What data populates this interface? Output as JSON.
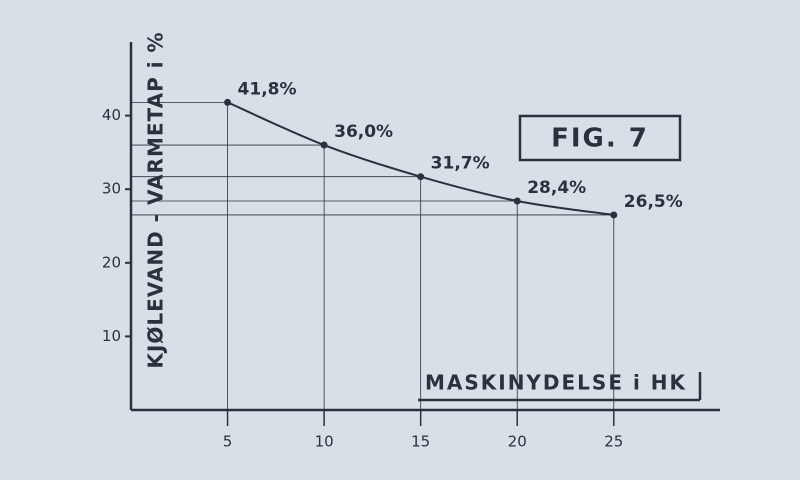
{
  "chart_data": {
    "type": "line",
    "title": "FIG. 7",
    "y_label": "KJØLEVAND - VARMETAP i %",
    "x_label": "MASKINYDELSE i HK",
    "x": [
      5,
      10,
      15,
      20,
      25
    ],
    "values": [
      41.8,
      36.0,
      31.7,
      28.4,
      26.5
    ],
    "value_labels": [
      "41,8%",
      "36,0%",
      "31,7%",
      "28,4%",
      "26,5%"
    ],
    "color": "#2a3240",
    "xlim": [
      0,
      30.5
    ],
    "ylim": [
      0,
      50
    ],
    "xticks": [
      5,
      10,
      15,
      20,
      25
    ],
    "yticks": [
      10,
      20,
      30,
      40
    ]
  }
}
